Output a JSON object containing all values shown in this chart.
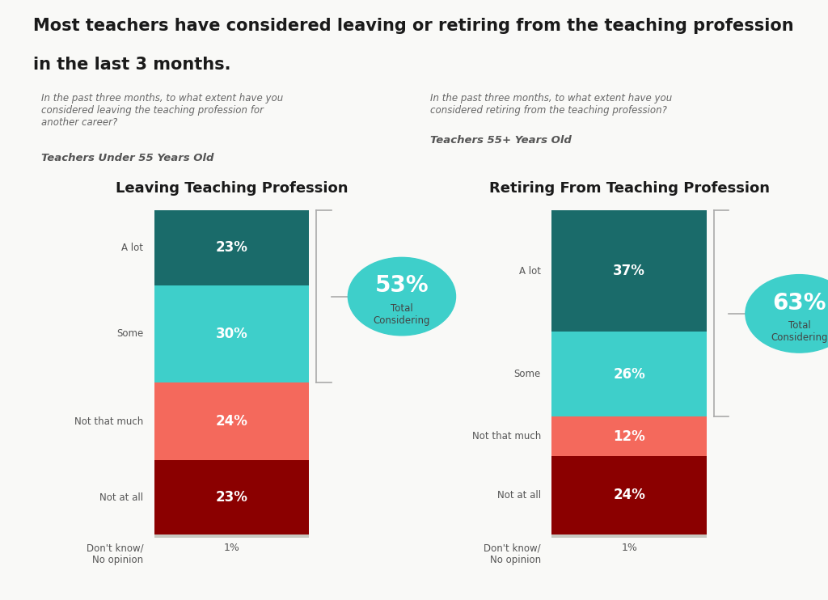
{
  "title_line1": "Most teachers have considered leaving or retiring from the teaching profession",
  "title_line2": "in the last 3 months.",
  "left_subtitle_q": "In the past three months, to what extent have you\nconsidered leaving the teaching profession for\nanother career?",
  "left_subtitle_label": "Teachers Under 55 Years Old",
  "right_subtitle_q": "In the past three months, to what extent have you\nconsidered retiring from the teaching profession?",
  "right_subtitle_label": "Teachers 55+ Years Old",
  "left_chart_title": "Leaving Teaching Profession",
  "right_chart_title": "Retiring From Teaching Profession",
  "categories": [
    "Don't know/\nNo opinion",
    "Not at all",
    "Not that much",
    "Some",
    "A lot"
  ],
  "left_values": [
    1,
    23,
    24,
    30,
    23
  ],
  "right_values": [
    1,
    24,
    12,
    26,
    37
  ],
  "left_total": "53%",
  "right_total": "63%",
  "total_label": "Total\nConsidering",
  "colors": {
    "dont_know": "#c8c8c0",
    "not_at_all": "#8b0000",
    "not_that_much": "#f4695c",
    "some": "#3ecfca",
    "a_lot": "#1a6b6a",
    "circle": "#3ecfca"
  },
  "bg_color": "#f9f9f7",
  "label_color": "#555555",
  "title_color": "#1a1a1a"
}
